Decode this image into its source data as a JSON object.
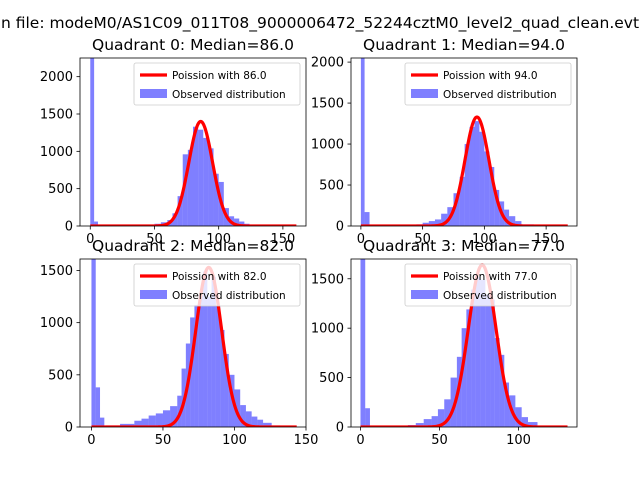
{
  "figure": {
    "suptitle": "n file: modeM0/AS1C09_011T08_9000006472_52244cztM0_level2_quad_clean.evt"
  },
  "chart_data": [
    {
      "type": "bar",
      "title": "Quadrant 0: Median=86.0",
      "median": 86.0,
      "xlim": [
        -8,
        168
      ],
      "ylim": [
        0,
        2250
      ],
      "xticks": [
        0,
        50,
        100,
        150
      ],
      "yticks": [
        0,
        500,
        1000,
        1500,
        2000
      ],
      "legend": [
        "Poission with 86.0",
        "Observed distribution"
      ],
      "poisson_peak": 1400,
      "spike": {
        "x0": 0,
        "x1": 3,
        "height": 2250
      },
      "bins": [
        {
          "x0": 3,
          "x1": 6,
          "h": 60
        },
        {
          "x0": 35,
          "x1": 40,
          "h": 5
        },
        {
          "x0": 40,
          "x1": 45,
          "h": 10
        },
        {
          "x0": 45,
          "x1": 50,
          "h": 15
        },
        {
          "x0": 50,
          "x1": 55,
          "h": 30
        },
        {
          "x0": 55,
          "x1": 60,
          "h": 50
        },
        {
          "x0": 60,
          "x1": 64,
          "h": 80
        },
        {
          "x0": 64,
          "x1": 68,
          "h": 170
        },
        {
          "x0": 68,
          "x1": 72,
          "h": 400
        },
        {
          "x0": 72,
          "x1": 76,
          "h": 960
        },
        {
          "x0": 76,
          "x1": 80,
          "h": 1020
        },
        {
          "x0": 80,
          "x1": 84,
          "h": 1330
        },
        {
          "x0": 84,
          "x1": 88,
          "h": 1290
        },
        {
          "x0": 88,
          "x1": 92,
          "h": 1180
        },
        {
          "x0": 92,
          "x1": 96,
          "h": 1040
        },
        {
          "x0": 96,
          "x1": 100,
          "h": 700
        },
        {
          "x0": 100,
          "x1": 104,
          "h": 590
        },
        {
          "x0": 104,
          "x1": 108,
          "h": 240
        },
        {
          "x0": 108,
          "x1": 112,
          "h": 130
        },
        {
          "x0": 112,
          "x1": 116,
          "h": 100
        },
        {
          "x0": 116,
          "x1": 120,
          "h": 60
        },
        {
          "x0": 120,
          "x1": 124,
          "h": 30
        },
        {
          "x0": 124,
          "x1": 130,
          "h": 15
        },
        {
          "x0": 130,
          "x1": 140,
          "h": 5
        }
      ]
    },
    {
      "type": "bar",
      "title": "Quadrant 1: Median=94.0",
      "median": 94.0,
      "xlim": [
        -8,
        175
      ],
      "ylim": [
        0,
        2050
      ],
      "xticks": [
        0,
        50,
        100,
        150
      ],
      "yticks": [
        0,
        500,
        1000,
        1500,
        2000
      ],
      "legend": [
        "Poission with 94.0",
        "Observed distribution"
      ],
      "poisson_peak": 1330,
      "spike": {
        "x0": 0,
        "x1": 3,
        "height": 2050
      },
      "bins": [
        {
          "x0": 3,
          "x1": 7,
          "h": 170
        },
        {
          "x0": 35,
          "x1": 45,
          "h": 10
        },
        {
          "x0": 45,
          "x1": 50,
          "h": 20
        },
        {
          "x0": 50,
          "x1": 55,
          "h": 40
        },
        {
          "x0": 55,
          "x1": 60,
          "h": 60
        },
        {
          "x0": 60,
          "x1": 65,
          "h": 80
        },
        {
          "x0": 65,
          "x1": 70,
          "h": 150
        },
        {
          "x0": 70,
          "x1": 75,
          "h": 230
        },
        {
          "x0": 75,
          "x1": 80,
          "h": 400
        },
        {
          "x0": 80,
          "x1": 84,
          "h": 600
        },
        {
          "x0": 84,
          "x1": 88,
          "h": 1000
        },
        {
          "x0": 88,
          "x1": 92,
          "h": 1210
        },
        {
          "x0": 92,
          "x1": 96,
          "h": 1280
        },
        {
          "x0": 96,
          "x1": 100,
          "h": 1150
        },
        {
          "x0": 100,
          "x1": 104,
          "h": 910
        },
        {
          "x0": 104,
          "x1": 108,
          "h": 720
        },
        {
          "x0": 108,
          "x1": 112,
          "h": 440
        },
        {
          "x0": 112,
          "x1": 116,
          "h": 300
        },
        {
          "x0": 116,
          "x1": 120,
          "h": 200
        },
        {
          "x0": 120,
          "x1": 125,
          "h": 120
        },
        {
          "x0": 125,
          "x1": 130,
          "h": 60
        },
        {
          "x0": 130,
          "x1": 140,
          "h": 20
        },
        {
          "x0": 140,
          "x1": 150,
          "h": 8
        }
      ]
    },
    {
      "type": "bar",
      "title": "Quadrant 2: Median=82.0",
      "median": 82.0,
      "xlim": [
        -8,
        150
      ],
      "ylim": [
        0,
        1610
      ],
      "xticks": [
        0,
        50,
        100,
        150
      ],
      "yticks": [
        0,
        500,
        1000,
        1500
      ],
      "legend": [
        "Poission with 82.0",
        "Observed distribution"
      ],
      "poisson_peak": 1530,
      "spike": {
        "x0": 0,
        "x1": 3,
        "height": 1610
      },
      "bins": [
        {
          "x0": 3,
          "x1": 6,
          "h": 380
        },
        {
          "x0": 6,
          "x1": 9,
          "h": 90
        },
        {
          "x0": 10,
          "x1": 20,
          "h": 15
        },
        {
          "x0": 20,
          "x1": 30,
          "h": 30
        },
        {
          "x0": 30,
          "x1": 35,
          "h": 60
        },
        {
          "x0": 35,
          "x1": 40,
          "h": 80
        },
        {
          "x0": 40,
          "x1": 45,
          "h": 110
        },
        {
          "x0": 45,
          "x1": 50,
          "h": 130
        },
        {
          "x0": 50,
          "x1": 55,
          "h": 160
        },
        {
          "x0": 55,
          "x1": 60,
          "h": 200
        },
        {
          "x0": 60,
          "x1": 63,
          "h": 300
        },
        {
          "x0": 63,
          "x1": 66,
          "h": 560
        },
        {
          "x0": 66,
          "x1": 69,
          "h": 800
        },
        {
          "x0": 69,
          "x1": 72,
          "h": 1050
        },
        {
          "x0": 72,
          "x1": 75,
          "h": 1170
        },
        {
          "x0": 75,
          "x1": 78,
          "h": 1260
        },
        {
          "x0": 78,
          "x1": 81,
          "h": 1490
        },
        {
          "x0": 81,
          "x1": 84,
          "h": 1250
        },
        {
          "x0": 84,
          "x1": 87,
          "h": 1440
        },
        {
          "x0": 87,
          "x1": 90,
          "h": 1160
        },
        {
          "x0": 90,
          "x1": 93,
          "h": 930
        },
        {
          "x0": 93,
          "x1": 96,
          "h": 700
        },
        {
          "x0": 96,
          "x1": 100,
          "h": 500
        },
        {
          "x0": 100,
          "x1": 104,
          "h": 360
        },
        {
          "x0": 104,
          "x1": 108,
          "h": 210
        },
        {
          "x0": 108,
          "x1": 112,
          "h": 150
        },
        {
          "x0": 112,
          "x1": 116,
          "h": 100
        },
        {
          "x0": 116,
          "x1": 120,
          "h": 70
        },
        {
          "x0": 120,
          "x1": 126,
          "h": 40
        },
        {
          "x0": 126,
          "x1": 132,
          "h": 15
        }
      ]
    },
    {
      "type": "bar",
      "title": "Quadrant 3: Median=77.0",
      "median": 77.0,
      "xlim": [
        -6,
        137
      ],
      "ylim": [
        0,
        1700
      ],
      "xticks": [
        0,
        50,
        100
      ],
      "yticks": [
        0,
        500,
        1000,
        1500
      ],
      "legend": [
        "Poission with 77.0",
        "Observed distribution"
      ],
      "poisson_peak": 1640,
      "spike": {
        "x0": 0,
        "x1": 3,
        "height": 1700
      },
      "bins": [
        {
          "x0": 3,
          "x1": 6,
          "h": 190
        },
        {
          "x0": 30,
          "x1": 35,
          "h": 20
        },
        {
          "x0": 35,
          "x1": 40,
          "h": 40
        },
        {
          "x0": 40,
          "x1": 45,
          "h": 80
        },
        {
          "x0": 45,
          "x1": 49,
          "h": 110
        },
        {
          "x0": 49,
          "x1": 53,
          "h": 180
        },
        {
          "x0": 53,
          "x1": 57,
          "h": 280
        },
        {
          "x0": 57,
          "x1": 61,
          "h": 500
        },
        {
          "x0": 61,
          "x1": 64,
          "h": 710
        },
        {
          "x0": 64,
          "x1": 67,
          "h": 1000
        },
        {
          "x0": 67,
          "x1": 70,
          "h": 1190
        },
        {
          "x0": 70,
          "x1": 73,
          "h": 1390
        },
        {
          "x0": 73,
          "x1": 76,
          "h": 1520
        },
        {
          "x0": 76,
          "x1": 79,
          "h": 1490
        },
        {
          "x0": 79,
          "x1": 82,
          "h": 1340
        },
        {
          "x0": 82,
          "x1": 85,
          "h": 1290
        },
        {
          "x0": 85,
          "x1": 88,
          "h": 900
        },
        {
          "x0": 88,
          "x1": 91,
          "h": 730
        },
        {
          "x0": 91,
          "x1": 94,
          "h": 450
        },
        {
          "x0": 94,
          "x1": 98,
          "h": 320
        },
        {
          "x0": 98,
          "x1": 102,
          "h": 200
        },
        {
          "x0": 102,
          "x1": 106,
          "h": 100
        },
        {
          "x0": 106,
          "x1": 112,
          "h": 50
        },
        {
          "x0": 112,
          "x1": 120,
          "h": 15
        }
      ]
    }
  ]
}
